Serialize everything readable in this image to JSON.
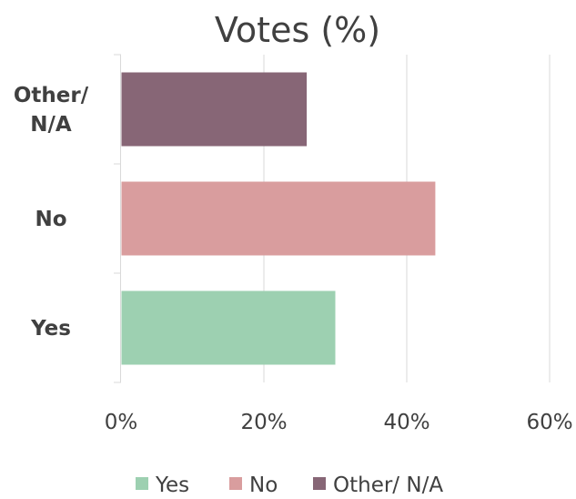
{
  "chart_data": {
    "type": "bar",
    "orientation": "horizontal",
    "title": "Votes (%)",
    "categories": [
      "Yes",
      "No",
      "Other/ N/A"
    ],
    "category_display": [
      [
        "Yes"
      ],
      [
        "No"
      ],
      [
        "Other/",
        "N/A"
      ]
    ],
    "values": [
      30,
      44,
      26
    ],
    "colors": [
      "#9dd0b1",
      "#d99d9e",
      "#876676"
    ],
    "xlim": [
      0,
      60
    ],
    "xticks": [
      0,
      20,
      40,
      60
    ],
    "xtick_labels": [
      "0%",
      "20%",
      "40%",
      "60%"
    ],
    "grid": true,
    "legend": {
      "position": "bottom",
      "entries": [
        "Yes",
        "No",
        "Other/ N/A"
      ]
    }
  }
}
